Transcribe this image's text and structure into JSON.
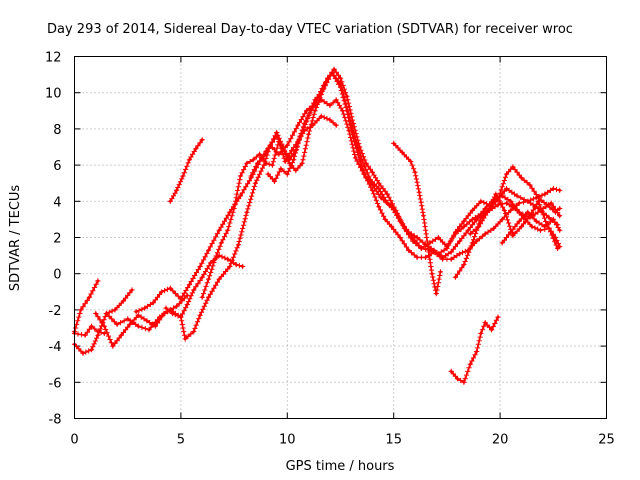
{
  "chart_data": {
    "type": "scatter",
    "title": "Day 293 of 2014, Sidereal Day-to-day VTEC variation (SDTVAR) for receiver wroc",
    "xlabel": "GPS time / hours",
    "ylabel": "SDTVAR / TECUs",
    "xlim": [
      0,
      25
    ],
    "ylim": [
      -8,
      12
    ],
    "xticks": [
      "0",
      "5",
      "10",
      "15",
      "20",
      "25"
    ],
    "yticks": [
      "-8",
      "-6",
      "-4",
      "-2",
      "0",
      "2",
      "4",
      "6",
      "8",
      "10",
      "12"
    ],
    "grid": true,
    "color": "#ff0000",
    "marker": "plus",
    "series": [
      {
        "name": "s1",
        "points": [
          [
            0.0,
            -3.2
          ],
          [
            0.3,
            -2.0
          ],
          [
            0.7,
            -1.3
          ],
          [
            1.1,
            -0.4
          ]
        ]
      },
      {
        "name": "s2",
        "points": [
          [
            0.0,
            -3.3
          ],
          [
            0.5,
            -3.4
          ],
          [
            0.8,
            -2.9
          ],
          [
            1.1,
            -3.2
          ],
          [
            1.4,
            -3.3
          ]
        ]
      },
      {
        "name": "s3",
        "points": [
          [
            0.0,
            -3.9
          ],
          [
            0.4,
            -4.4
          ],
          [
            0.8,
            -4.2
          ],
          [
            1.1,
            -3.4
          ],
          [
            1.5,
            -2.2
          ],
          [
            1.9,
            -2.0
          ],
          [
            2.3,
            -1.5
          ],
          [
            2.7,
            -0.9
          ]
        ]
      },
      {
        "name": "s4",
        "points": [
          [
            1.0,
            -2.2
          ],
          [
            1.4,
            -2.9
          ],
          [
            1.8,
            -4.0
          ],
          [
            2.2,
            -3.4
          ],
          [
            2.6,
            -2.8
          ],
          [
            3.0,
            -2.3
          ],
          [
            3.4,
            -2.6
          ],
          [
            3.8,
            -2.9
          ],
          [
            4.2,
            -2.2
          ],
          [
            4.8,
            -1.8
          ],
          [
            5.3,
            -1.2
          ]
        ]
      },
      {
        "name": "s5",
        "points": [
          [
            1.5,
            -2.2
          ],
          [
            2.0,
            -2.8
          ],
          [
            2.5,
            -2.5
          ],
          [
            3.0,
            -2.9
          ],
          [
            3.5,
            -3.1
          ],
          [
            4.0,
            -2.4
          ],
          [
            4.5,
            -2.0
          ],
          [
            5.0,
            -2.4
          ],
          [
            5.2,
            -3.6
          ],
          [
            5.6,
            -3.2
          ],
          [
            5.9,
            -2.3
          ],
          [
            6.3,
            -1.3
          ],
          [
            6.8,
            -0.3
          ],
          [
            7.3,
            0.4
          ],
          [
            7.7,
            1.6
          ],
          [
            8.1,
            3.4
          ],
          [
            8.5,
            5.0
          ],
          [
            8.9,
            6.0
          ],
          [
            9.2,
            7.1
          ],
          [
            9.5,
            7.6
          ],
          [
            9.8,
            6.9
          ],
          [
            10.1,
            6.3
          ],
          [
            10.4,
            6.8
          ],
          [
            10.8,
            8.3
          ],
          [
            11.2,
            9.2
          ],
          [
            11.6,
            9.6
          ],
          [
            12.0,
            9.3
          ],
          [
            12.3,
            9.6
          ],
          [
            12.6,
            9.0
          ],
          [
            12.9,
            7.9
          ],
          [
            13.2,
            6.4
          ],
          [
            13.6,
            5.5
          ],
          [
            14.0,
            4.9
          ],
          [
            14.4,
            4.2
          ],
          [
            14.9,
            3.7
          ],
          [
            15.3,
            2.9
          ],
          [
            15.7,
            2.3
          ],
          [
            16.1,
            2.0
          ],
          [
            16.5,
            1.6
          ],
          [
            16.9,
            1.3
          ],
          [
            17.3,
            0.9
          ],
          [
            17.7,
            1.2
          ],
          [
            18.1,
            1.8
          ],
          [
            18.5,
            2.4
          ],
          [
            18.9,
            3.0
          ],
          [
            19.3,
            3.6
          ],
          [
            19.7,
            4.1
          ],
          [
            20.1,
            4.3
          ],
          [
            20.5,
            4.0
          ],
          [
            20.9,
            3.4
          ],
          [
            21.4,
            3.1
          ],
          [
            21.9,
            3.5
          ],
          [
            22.4,
            3.9
          ],
          [
            22.8,
            3.2
          ]
        ]
      },
      {
        "name": "s6",
        "points": [
          [
            2.9,
            -2.1
          ],
          [
            3.3,
            -1.9
          ],
          [
            3.7,
            -1.6
          ],
          [
            4.1,
            -1.0
          ],
          [
            4.5,
            -0.8
          ],
          [
            5.0,
            -1.4
          ],
          [
            5.4,
            -0.6
          ],
          [
            5.9,
            0.4
          ],
          [
            6.3,
            1.3
          ],
          [
            6.8,
            2.4
          ],
          [
            7.3,
            3.4
          ],
          [
            7.8,
            4.3
          ],
          [
            8.3,
            5.3
          ],
          [
            8.8,
            6.4
          ],
          [
            9.2,
            7.1
          ],
          [
            9.6,
            6.6
          ],
          [
            10.0,
            7.1
          ],
          [
            10.5,
            8.2
          ],
          [
            10.9,
            9.0
          ],
          [
            11.3,
            9.4
          ],
          [
            11.7,
            10.4
          ],
          [
            12.1,
            11.1
          ],
          [
            12.5,
            10.5
          ],
          [
            12.8,
            9.2
          ],
          [
            13.1,
            7.8
          ],
          [
            13.5,
            6.3
          ],
          [
            13.9,
            5.2
          ],
          [
            14.3,
            4.7
          ],
          [
            14.7,
            3.9
          ],
          [
            15.1,
            3.4
          ],
          [
            15.5,
            2.6
          ],
          [
            15.9,
            2.0
          ],
          [
            16.3,
            1.4
          ],
          [
            16.7,
            1.3
          ],
          [
            17.1,
            1.1
          ],
          [
            17.5,
            1.4
          ],
          [
            17.9,
            2.3
          ],
          [
            18.3,
            2.9
          ],
          [
            18.7,
            3.5
          ],
          [
            19.1,
            4.0
          ],
          [
            19.5,
            3.8
          ],
          [
            19.9,
            4.1
          ],
          [
            20.3,
            4.7
          ],
          [
            20.8,
            4.3
          ],
          [
            21.3,
            4.0
          ],
          [
            21.8,
            3.6
          ],
          [
            22.3,
            3.1
          ],
          [
            22.7,
            2.7
          ]
        ]
      },
      {
        "name": "s7",
        "points": [
          [
            4.3,
            -1.9
          ],
          [
            4.6,
            -2.2
          ],
          [
            5.0,
            -2.4
          ],
          [
            5.3,
            -1.7
          ],
          [
            5.6,
            -0.9
          ],
          [
            6.0,
            -0.2
          ],
          [
            6.4,
            0.6
          ],
          [
            6.8,
            1.0
          ],
          [
            7.2,
            0.8
          ],
          [
            7.6,
            0.5
          ],
          [
            7.9,
            0.4
          ]
        ]
      },
      {
        "name": "s8",
        "points": [
          [
            6.0,
            -1.3
          ],
          [
            6.3,
            -0.3
          ],
          [
            6.6,
            0.8
          ],
          [
            6.9,
            1.7
          ],
          [
            7.2,
            2.4
          ],
          [
            7.5,
            3.6
          ],
          [
            7.8,
            5.4
          ],
          [
            8.1,
            6.1
          ],
          [
            8.4,
            6.3
          ],
          [
            8.7,
            6.6
          ],
          [
            9.0,
            6.1
          ],
          [
            9.3,
            6.0
          ],
          [
            9.6,
            7.3
          ],
          [
            9.9,
            6.2
          ],
          [
            10.2,
            6.8
          ],
          [
            10.5,
            7.3
          ],
          [
            10.8,
            7.9
          ],
          [
            11.2,
            8.2
          ],
          [
            11.6,
            8.7
          ],
          [
            12.0,
            8.5
          ],
          [
            12.3,
            8.2
          ]
        ]
      },
      {
        "name": "s9",
        "points": [
          [
            4.5,
            4.0
          ],
          [
            4.8,
            4.6
          ],
          [
            5.1,
            5.4
          ],
          [
            5.4,
            6.3
          ],
          [
            5.7,
            6.9
          ],
          [
            6.0,
            7.4
          ]
        ]
      },
      {
        "name": "s10",
        "points": [
          [
            8.3,
            5.4
          ],
          [
            8.6,
            6.1
          ],
          [
            8.9,
            6.5
          ],
          [
            9.2,
            7.1
          ],
          [
            9.5,
            7.8
          ],
          [
            9.8,
            7.0
          ],
          [
            10.1,
            6.1
          ],
          [
            10.4,
            5.7
          ],
          [
            10.7,
            6.1
          ],
          [
            11.0,
            7.7
          ],
          [
            11.3,
            9.0
          ],
          [
            11.6,
            9.9
          ],
          [
            11.9,
            10.8
          ],
          [
            12.2,
            11.3
          ],
          [
            12.5,
            10.8
          ],
          [
            12.8,
            9.8
          ],
          [
            13.1,
            8.3
          ],
          [
            13.4,
            7.0
          ],
          [
            13.7,
            6.1
          ],
          [
            14.0,
            5.6
          ],
          [
            14.3,
            5.0
          ],
          [
            14.7,
            4.4
          ],
          [
            15.1,
            3.5
          ],
          [
            15.5,
            2.5
          ],
          [
            15.9,
            1.8
          ],
          [
            16.3,
            1.4
          ],
          [
            16.7,
            1.7
          ],
          [
            17.1,
            2.0
          ],
          [
            17.5,
            1.5
          ],
          [
            17.9,
            2.2
          ],
          [
            18.3,
            2.6
          ],
          [
            18.7,
            3.0
          ],
          [
            19.1,
            3.3
          ],
          [
            19.5,
            3.5
          ],
          [
            19.9,
            3.8
          ],
          [
            20.3,
            3.9
          ],
          [
            20.7,
            3.6
          ],
          [
            21.1,
            3.1
          ],
          [
            21.5,
            2.6
          ],
          [
            21.9,
            2.4
          ],
          [
            22.3,
            2.5
          ],
          [
            22.7,
            1.4
          ]
        ]
      },
      {
        "name": "s11",
        "points": [
          [
            9.1,
            5.5
          ],
          [
            9.4,
            5.1
          ],
          [
            9.7,
            5.8
          ],
          [
            10.0,
            5.5
          ],
          [
            10.3,
            6.3
          ],
          [
            10.6,
            7.6
          ],
          [
            10.9,
            8.4
          ],
          [
            11.3,
            9.6
          ],
          [
            11.7,
            10.2
          ],
          [
            12.1,
            11.1
          ],
          [
            12.5,
            10.3
          ],
          [
            12.8,
            9.0
          ],
          [
            13.1,
            7.5
          ],
          [
            13.4,
            6.3
          ],
          [
            13.7,
            5.3
          ],
          [
            14.0,
            4.6
          ],
          [
            14.3,
            3.7
          ],
          [
            14.6,
            3.0
          ],
          [
            14.9,
            2.6
          ],
          [
            15.3,
            2.0
          ],
          [
            15.7,
            1.3
          ],
          [
            16.1,
            0.9
          ],
          [
            16.5,
            0.9
          ],
          [
            16.9,
            1.2
          ],
          [
            17.3,
            0.8
          ],
          [
            17.7,
            0.8
          ],
          [
            18.1,
            1.1
          ],
          [
            18.5,
            1.3
          ],
          [
            18.9,
            1.8
          ],
          [
            19.3,
            2.2
          ],
          [
            19.7,
            2.5
          ],
          [
            20.1,
            3.0
          ],
          [
            20.5,
            3.5
          ],
          [
            20.9,
            3.9
          ],
          [
            21.3,
            4.0
          ],
          [
            21.7,
            4.2
          ],
          [
            22.1,
            4.4
          ],
          [
            22.5,
            4.7
          ],
          [
            22.8,
            4.6
          ]
        ]
      },
      {
        "name": "s12",
        "points": [
          [
            15.0,
            7.2
          ],
          [
            15.4,
            6.7
          ],
          [
            15.8,
            6.2
          ],
          [
            16.0,
            5.6
          ],
          [
            16.2,
            4.5
          ],
          [
            16.4,
            3.2
          ],
          [
            16.6,
            1.6
          ],
          [
            16.8,
            0.0
          ],
          [
            17.0,
            -1.1
          ],
          [
            17.2,
            0.1
          ]
        ]
      },
      {
        "name": "s13",
        "points": [
          [
            17.7,
            -5.4
          ],
          [
            18.0,
            -5.8
          ],
          [
            18.3,
            -6.0
          ],
          [
            18.6,
            -5.0
          ],
          [
            18.9,
            -4.3
          ],
          [
            19.1,
            -3.3
          ],
          [
            19.3,
            -2.7
          ],
          [
            19.6,
            -3.1
          ],
          [
            19.9,
            -2.4
          ]
        ]
      },
      {
        "name": "s14",
        "points": [
          [
            17.9,
            -0.2
          ],
          [
            18.3,
            0.5
          ],
          [
            18.7,
            1.7
          ],
          [
            19.1,
            3.1
          ],
          [
            19.5,
            3.6
          ],
          [
            19.9,
            4.1
          ],
          [
            20.3,
            5.5
          ],
          [
            20.6,
            5.9
          ],
          [
            21.0,
            5.3
          ],
          [
            21.4,
            4.9
          ],
          [
            21.8,
            4.2
          ],
          [
            22.2,
            3.8
          ],
          [
            22.6,
            3.4
          ],
          [
            22.8,
            3.6
          ]
        ]
      },
      {
        "name": "s15",
        "points": [
          [
            18.6,
            2.2
          ],
          [
            19.0,
            2.6
          ],
          [
            19.4,
            3.4
          ],
          [
            19.8,
            4.4
          ],
          [
            20.2,
            3.5
          ],
          [
            20.6,
            2.1
          ],
          [
            21.0,
            2.6
          ],
          [
            21.4,
            3.2
          ],
          [
            21.8,
            4.0
          ],
          [
            22.2,
            2.7
          ],
          [
            22.6,
            2.0
          ],
          [
            22.8,
            1.5
          ]
        ]
      },
      {
        "name": "s16",
        "points": [
          [
            20.1,
            1.7
          ],
          [
            20.5,
            2.3
          ],
          [
            20.9,
            2.9
          ],
          [
            21.3,
            3.4
          ],
          [
            21.7,
            2.9
          ],
          [
            22.1,
            2.6
          ],
          [
            22.5,
            3.0
          ],
          [
            22.8,
            2.4
          ]
        ]
      }
    ]
  }
}
